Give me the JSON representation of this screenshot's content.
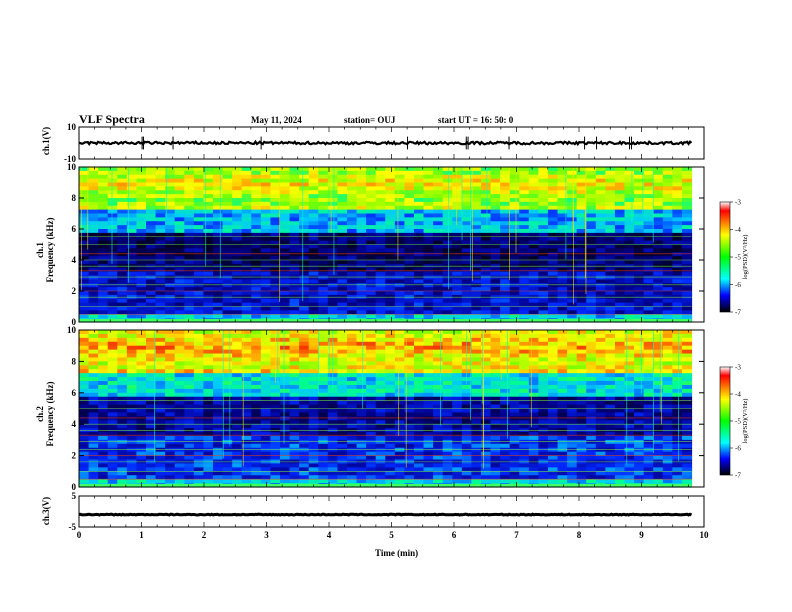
{
  "header": {
    "title": "VLF Spectra",
    "date": "May 11, 2024",
    "station": "station= OUJ",
    "start": "start  UT =   16: 50: 0"
  },
  "chart_data": [
    {
      "type": "line",
      "name": "ch1-waveform",
      "ylabel": "ch.1(V)",
      "ylim": [
        -10,
        10
      ],
      "yticks": [
        "10",
        "-10"
      ],
      "baseline": 0,
      "note_values": "noisy trace around 0 V"
    },
    {
      "type": "heatmap",
      "name": "ch1-spectrogram",
      "ylabel_line1": "ch.1",
      "ylabel_line2": "Frequency (kHz)",
      "ylim": [
        0,
        10
      ],
      "yticks": [
        "0",
        "2",
        "4",
        "6",
        "8",
        "10"
      ],
      "colorbar": {
        "label": "log(PSD)(V²/Hz)",
        "range": [
          -7,
          -3
        ],
        "ticks": [
          "-3",
          "-4",
          "-5",
          "-6",
          "-7"
        ]
      }
    },
    {
      "type": "heatmap",
      "name": "ch2-spectrogram",
      "ylabel_line1": "ch.2",
      "ylabel_line2": "Frequency (kHz)",
      "ylim": [
        0,
        10
      ],
      "yticks": [
        "0",
        "2",
        "4",
        "6",
        "8",
        "10"
      ],
      "colorbar": {
        "label": "log(PSD)(V²/Hz)",
        "range": [
          -7,
          -3
        ],
        "ticks": [
          "-3",
          "-4",
          "-5",
          "-6",
          "-7"
        ]
      }
    },
    {
      "type": "line",
      "name": "ch3-waveform",
      "ylabel": "ch.3(V)",
      "ylim": [
        -5,
        5
      ],
      "yticks": [
        "5",
        "-5"
      ],
      "baseline": -1,
      "note_values": "flat trace near -1 V"
    }
  ],
  "xaxis": {
    "label": "Time  (min)",
    "range": [
      0,
      10
    ],
    "ticks": [
      "0",
      "1",
      "2",
      "3",
      "4",
      "5",
      "6",
      "7",
      "8",
      "9",
      "10"
    ],
    "data_end": 9.8
  }
}
